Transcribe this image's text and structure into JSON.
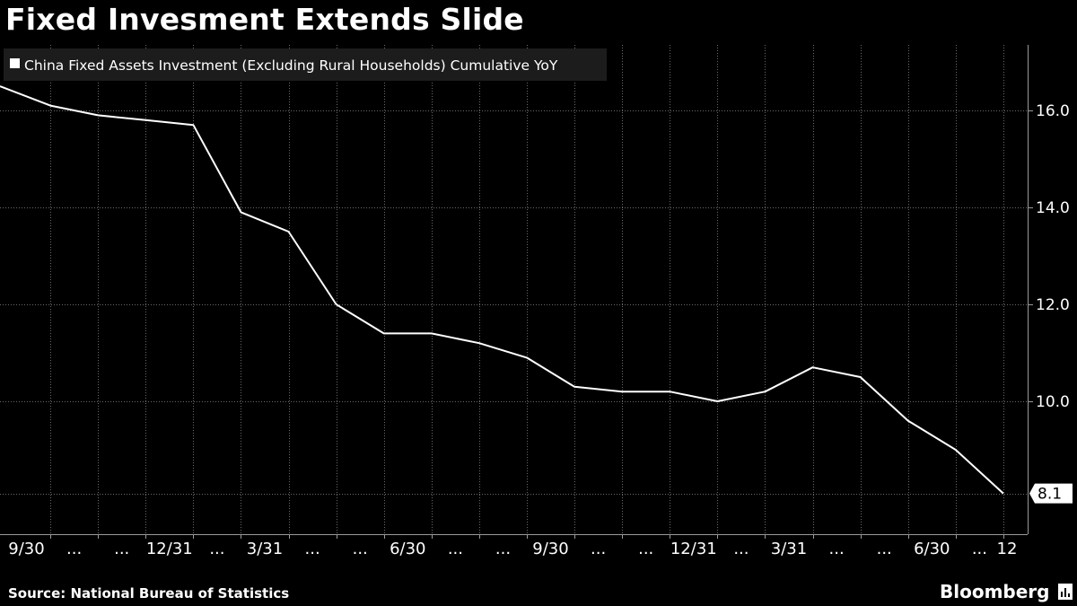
{
  "title": "Fixed Invesment Extends Slide",
  "legend_label": "China Fixed Assets Investment (Excluding Rural Households) Cumulative YoY",
  "source": "Source: National Bureau of Statistics",
  "brand": "Bloomberg",
  "colors": {
    "background": "#000000",
    "line": "#ffffff",
    "grid": "#6a6a6a",
    "legend_bg": "#1c1c1c"
  },
  "chart_data": {
    "type": "line",
    "x_tick_labels": [
      "9/30",
      "...",
      "...",
      "12/31",
      "...",
      "3/31",
      "...",
      "...",
      "6/30",
      "...",
      "...",
      "9/30",
      "...",
      "...",
      "12/31",
      "...",
      "3/31",
      "...",
      "...",
      "6/30",
      "...",
      "12"
    ],
    "series": [
      {
        "name": "China Fixed Assets Investment (Excluding Rural Households) Cumulative YoY",
        "values": [
          16.5,
          16.1,
          15.9,
          15.8,
          15.7,
          13.9,
          13.5,
          12.0,
          11.4,
          11.4,
          11.2,
          10.9,
          10.3,
          10.2,
          10.2,
          10.0,
          10.2,
          10.7,
          10.5,
          9.6,
          9.0,
          8.1
        ]
      }
    ],
    "y_ticks": [
      "16.0",
      "14.0",
      "12.0",
      "10.0"
    ],
    "last_value_label": "8.1",
    "ylim": [
      7.7,
      17.2
    ],
    "y_axis_side": "right",
    "grid": "horizontal dotted",
    "legend_position": "top-left"
  }
}
